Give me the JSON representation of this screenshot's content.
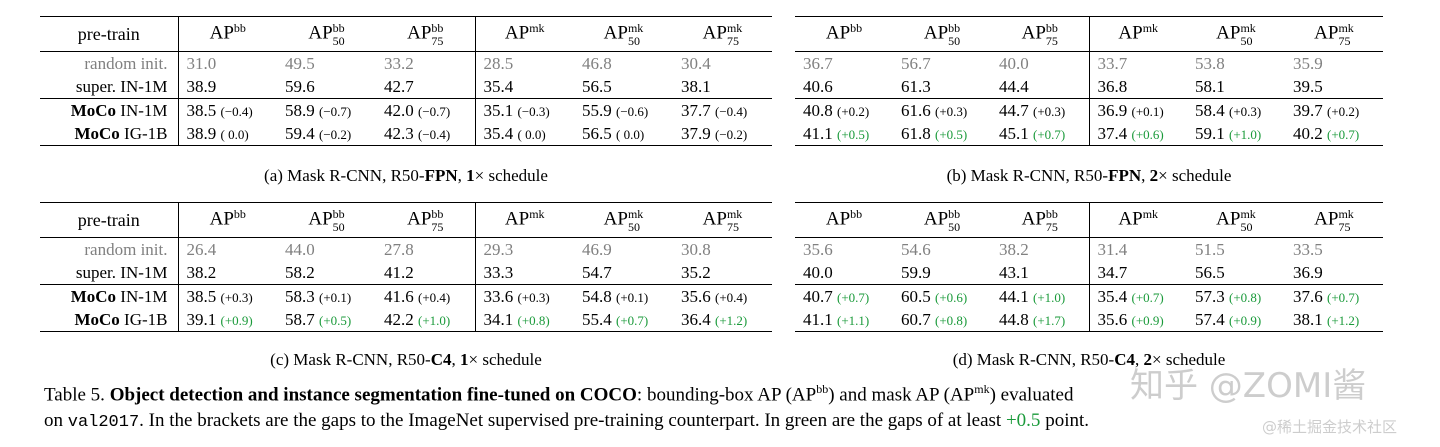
{
  "headers": {
    "pretrain": "pre-train",
    "metrics": [
      {
        "base": "AP",
        "sup": "bb",
        "sub": ""
      },
      {
        "base": "AP",
        "sup": "bb",
        "sub": "50"
      },
      {
        "base": "AP",
        "sup": "bb",
        "sub": "75"
      },
      {
        "base": "AP",
        "sup": "mk",
        "sub": ""
      },
      {
        "base": "AP",
        "sup": "mk",
        "sub": "50"
      },
      {
        "base": "AP",
        "sup": "mk",
        "sub": "75"
      }
    ]
  },
  "rows": {
    "random": {
      "label": "random init."
    },
    "super": {
      "label": "super.",
      "data": "IN-1M"
    },
    "moco_in": {
      "label": "MoCo",
      "data": "IN-1M"
    },
    "moco_ig": {
      "label": "MoCo",
      "data": "IG-1B"
    }
  },
  "tables": [
    {
      "caption": {
        "prefix": "(a) Mask R-CNN, R50-",
        "bold": "FPN",
        "mid": ", ",
        "bold2": "1",
        "suffix": "× schedule"
      },
      "random": [
        "31.0",
        "49.5",
        "33.2",
        "28.5",
        "46.8",
        "30.4"
      ],
      "super": [
        "38.9",
        "59.6",
        "42.7",
        "35.4",
        "56.5",
        "38.1"
      ],
      "moco_in": [
        [
          "38.5",
          "(−0.4)",
          false
        ],
        [
          "58.9",
          "(−0.7)",
          false
        ],
        [
          "42.0",
          "(−0.7)",
          false
        ],
        [
          "35.1",
          "(−0.3)",
          false
        ],
        [
          "55.9",
          "(−0.6)",
          false
        ],
        [
          "37.7",
          "(−0.4)",
          false
        ]
      ],
      "moco_ig": [
        [
          "38.9",
          "( 0.0)",
          false
        ],
        [
          "59.4",
          "(−0.2)",
          false
        ],
        [
          "42.3",
          "(−0.4)",
          false
        ],
        [
          "35.4",
          "( 0.0)",
          false
        ],
        [
          "56.5",
          "( 0.0)",
          false
        ],
        [
          "37.9",
          "(−0.2)",
          false
        ]
      ]
    },
    {
      "caption": {
        "prefix": "(b) Mask R-CNN, R50-",
        "bold": "FPN",
        "mid": ", ",
        "bold2": "2",
        "suffix": "× schedule"
      },
      "random": [
        "36.7",
        "56.7",
        "40.0",
        "33.7",
        "53.8",
        "35.9"
      ],
      "super": [
        "40.6",
        "61.3",
        "44.4",
        "36.8",
        "58.1",
        "39.5"
      ],
      "moco_in": [
        [
          "40.8",
          "(+0.2)",
          false
        ],
        [
          "61.6",
          "(+0.3)",
          false
        ],
        [
          "44.7",
          "(+0.3)",
          false
        ],
        [
          "36.9",
          "(+0.1)",
          false
        ],
        [
          "58.4",
          "(+0.3)",
          false
        ],
        [
          "39.7",
          "(+0.2)",
          false
        ]
      ],
      "moco_ig": [
        [
          "41.1",
          "(+0.5)",
          true
        ],
        [
          "61.8",
          "(+0.5)",
          true
        ],
        [
          "45.1",
          "(+0.7)",
          true
        ],
        [
          "37.4",
          "(+0.6)",
          true
        ],
        [
          "59.1",
          "(+1.0)",
          true
        ],
        [
          "40.2",
          "(+0.7)",
          true
        ]
      ]
    },
    {
      "caption": {
        "prefix": "(c) Mask R-CNN, R50-",
        "bold": "C4",
        "mid": ", ",
        "bold2": "1",
        "suffix": "× schedule"
      },
      "random": [
        "26.4",
        "44.0",
        "27.8",
        "29.3",
        "46.9",
        "30.8"
      ],
      "super": [
        "38.2",
        "58.2",
        "41.2",
        "33.3",
        "54.7",
        "35.2"
      ],
      "moco_in": [
        [
          "38.5",
          "(+0.3)",
          false
        ],
        [
          "58.3",
          "(+0.1)",
          false
        ],
        [
          "41.6",
          "(+0.4)",
          false
        ],
        [
          "33.6",
          "(+0.3)",
          false
        ],
        [
          "54.8",
          "(+0.1)",
          false
        ],
        [
          "35.6",
          "(+0.4)",
          false
        ]
      ],
      "moco_ig": [
        [
          "39.1",
          "(+0.9)",
          true
        ],
        [
          "58.7",
          "(+0.5)",
          true
        ],
        [
          "42.2",
          "(+1.0)",
          true
        ],
        [
          "34.1",
          "(+0.8)",
          true
        ],
        [
          "55.4",
          "(+0.7)",
          true
        ],
        [
          "36.4",
          "(+1.2)",
          true
        ]
      ]
    },
    {
      "caption": {
        "prefix": "(d) Mask R-CNN, R50-",
        "bold": "C4",
        "mid": ", ",
        "bold2": "2",
        "suffix": "× schedule"
      },
      "random": [
        "35.6",
        "54.6",
        "38.2",
        "31.4",
        "51.5",
        "33.5"
      ],
      "super": [
        "40.0",
        "59.9",
        "43.1",
        "34.7",
        "56.5",
        "36.9"
      ],
      "moco_in": [
        [
          "40.7",
          "(+0.7)",
          true
        ],
        [
          "60.5",
          "(+0.6)",
          true
        ],
        [
          "44.1",
          "(+1.0)",
          true
        ],
        [
          "35.4",
          "(+0.7)",
          true
        ],
        [
          "57.3",
          "(+0.8)",
          true
        ],
        [
          "37.6",
          "(+0.7)",
          true
        ]
      ],
      "moco_ig": [
        [
          "41.1",
          "(+1.1)",
          true
        ],
        [
          "60.7",
          "(+0.8)",
          true
        ],
        [
          "44.8",
          "(+1.7)",
          true
        ],
        [
          "35.6",
          "(+0.9)",
          true
        ],
        [
          "57.4",
          "(+0.9)",
          true
        ],
        [
          "38.1",
          "(+1.2)",
          true
        ]
      ]
    }
  ],
  "main_caption": {
    "label": "Table 5.",
    "bold": "Object detection and instance segmentation fine-tuned on COCO",
    "t1": ": bounding-box AP (AP",
    "sup1": "bb",
    "t2": ") and mask AP (AP",
    "sup2": "mk",
    "t3": ") evaluated",
    "t4": "on ",
    "mono": "val2017",
    "t5": ". In the brackets are the gaps to the ImageNet supervised pre-training counterpart. In green are the gaps of at least ",
    "green": "+0.5",
    "t6": " point."
  },
  "watermark": {
    "main": "知乎 @ZOMI酱",
    "sub": "@稀土掘金技术社区"
  },
  "colors": {
    "green": "#1a9a3a",
    "gray": "#808080"
  }
}
